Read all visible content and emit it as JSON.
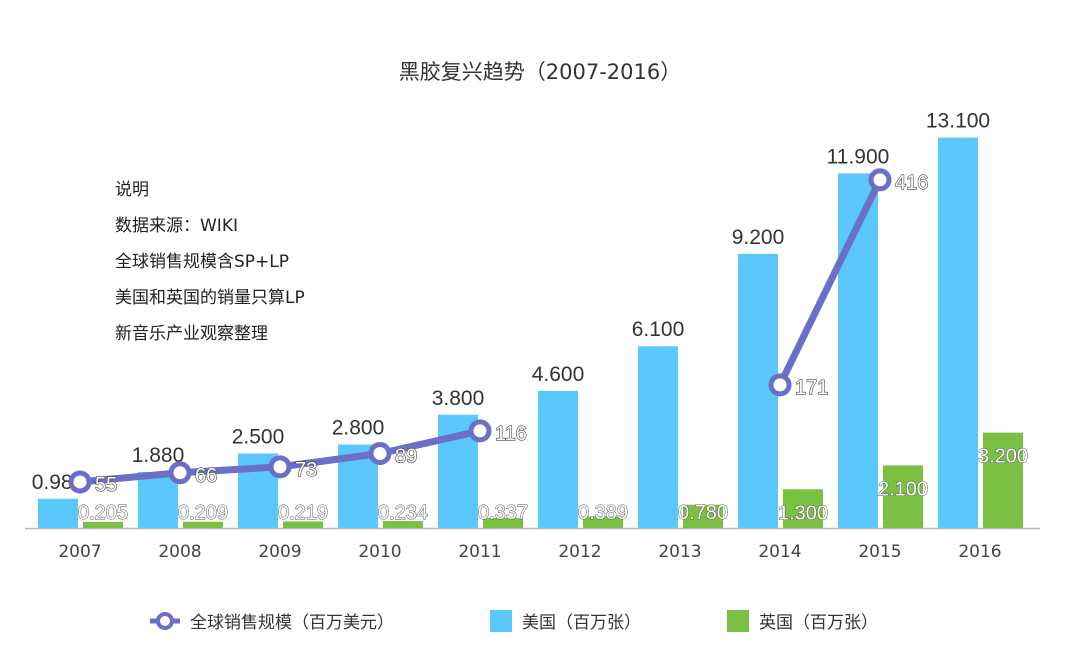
{
  "chart_data": {
    "type": "bar",
    "title": "黑胶复兴趋势（2007-2016）",
    "categories": [
      "2007",
      "2008",
      "2009",
      "2010",
      "2011",
      "2012",
      "2013",
      "2014",
      "2015",
      "2016"
    ],
    "series": [
      {
        "name": "美国（百万张）",
        "type": "bar",
        "color": "#5AC8FA",
        "values": [
          0.98,
          1.88,
          2.5,
          2.8,
          3.8,
          4.6,
          6.1,
          9.2,
          11.9,
          13.1
        ],
        "labels": [
          "0.980",
          "1.880",
          "2.500",
          "2.800",
          "3.800",
          "4.600",
          "6.100",
          "9.200",
          "11.900",
          "13.100"
        ]
      },
      {
        "name": "英国（百万张）",
        "type": "bar",
        "color": "#7AC143",
        "values": [
          0.205,
          0.209,
          0.219,
          0.234,
          0.337,
          0.389,
          0.78,
          1.3,
          2.1,
          3.2
        ],
        "labels": [
          "0.205",
          "0.209",
          "0.219",
          "0.234",
          "0.337",
          "0.389",
          "0.780",
          "1.300",
          "2.100",
          "3.200"
        ]
      },
      {
        "name": "全球销售规模（百万美元）",
        "type": "line",
        "color": "#6B6FC7",
        "values": [
          55,
          66,
          73,
          89,
          116,
          null,
          null,
          171,
          416,
          null
        ],
        "labels": [
          "55",
          "66",
          "73",
          "89",
          "116",
          "",
          "",
          "171",
          "416",
          ""
        ]
      }
    ],
    "legend": "bottom",
    "grid": false
  },
  "notes": [
    "说明",
    "数据来源：WIKI",
    "全球销售规模含SP+LP",
    "美国和英国的销量只算LP",
    "新音乐产业观察整理"
  ]
}
